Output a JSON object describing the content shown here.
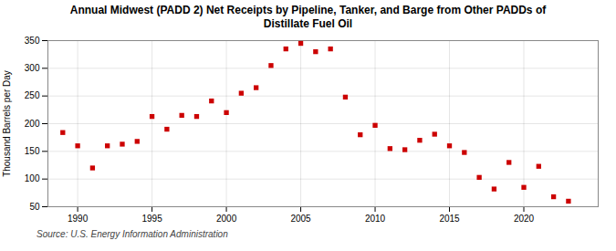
{
  "chart_data": {
    "type": "scatter",
    "title": "Annual Midwest (PADD 2) Net Receipts by Pipeline, Tanker, and Barge from Other PADDs of",
    "subtitle": "Distillate Fuel Oil",
    "ylabel": "Thousand Barrels per Day",
    "annotations": [
      "Source: U.S. Energy Information Administration"
    ],
    "x": [
      1989,
      1990,
      1991,
      1992,
      1993,
      1994,
      1995,
      1996,
      1997,
      1998,
      1999,
      2000,
      2001,
      2002,
      2003,
      2004,
      2005,
      2006,
      2007,
      2008,
      2009,
      2010,
      2011,
      2012,
      2013,
      2014,
      2015,
      2016,
      2017,
      2018,
      2019,
      2020,
      2021,
      2022,
      2023
    ],
    "values": [
      184,
      160,
      120,
      160,
      163,
      168,
      213,
      190,
      215,
      213,
      241,
      220,
      255,
      265,
      305,
      335,
      345,
      330,
      335,
      248,
      180,
      197,
      155,
      153,
      170,
      181,
      160,
      148,
      103,
      82,
      130,
      85,
      123,
      68,
      60
    ],
    "color": "#cc0000",
    "marker": "square",
    "xlim": [
      1988,
      2025
    ],
    "ylim": [
      50,
      350
    ],
    "xticks": [
      1990,
      1995,
      2000,
      2005,
      2010,
      2015,
      2020
    ],
    "yticks": [
      50,
      100,
      150,
      200,
      250,
      300,
      350
    ],
    "grid": true
  }
}
